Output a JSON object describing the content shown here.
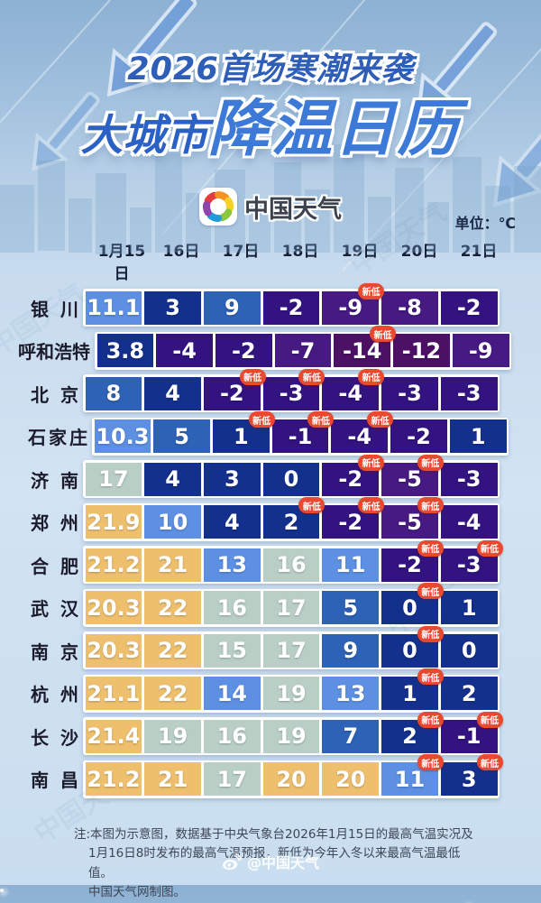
{
  "header": {
    "title_line1": "2026首场寒潮来袭",
    "title_line2_prefix": "大城市",
    "title_line2_main": "降温日历",
    "brand": "中国天气",
    "unit_label": "单位：℃"
  },
  "chart_data": {
    "type": "heatmap",
    "title": "大城市降温日历",
    "subtitle": "2026首场寒潮来袭",
    "unit": "℃",
    "new_low_badge_label": "新低",
    "badge_color": "#e8492f",
    "columns": [
      "1月15日",
      "16日",
      "17日",
      "18日",
      "19日",
      "20日",
      "21日"
    ],
    "rows": [
      {
        "city": "银川",
        "values": [
          "11.1",
          "3",
          "9",
          "-2",
          "-9",
          "-8",
          "-2"
        ],
        "new_low_cols": [
          4
        ]
      },
      {
        "city": "呼和浩特",
        "values": [
          "3.8",
          "-4",
          "-2",
          "-7",
          "-14",
          "-12",
          "-9"
        ],
        "new_low_cols": [
          4
        ]
      },
      {
        "city": "北京",
        "values": [
          "8",
          "4",
          "-2",
          "-3",
          "-4",
          "-3",
          "-3"
        ],
        "new_low_cols": [
          2,
          3,
          4
        ]
      },
      {
        "city": "石家庄",
        "values": [
          "10.3",
          "5",
          "1",
          "-1",
          "-4",
          "-2",
          "1"
        ],
        "new_low_cols": [
          2,
          3,
          4
        ]
      },
      {
        "city": "济南",
        "values": [
          "17",
          "4",
          "3",
          "0",
          "-2",
          "-5",
          "-3"
        ],
        "new_low_cols": [
          4,
          5
        ]
      },
      {
        "city": "郑州",
        "values": [
          "21.9",
          "10",
          "4",
          "2",
          "-2",
          "-5",
          "-4"
        ],
        "new_low_cols": [
          3,
          4,
          5
        ]
      },
      {
        "city": "合肥",
        "values": [
          "21.2",
          "21",
          "13",
          "16",
          "11",
          "-2",
          "-3"
        ],
        "new_low_cols": [
          5,
          6
        ]
      },
      {
        "city": "武汉",
        "values": [
          "20.3",
          "22",
          "16",
          "17",
          "5",
          "0",
          "1"
        ],
        "new_low_cols": [
          5
        ]
      },
      {
        "city": "南京",
        "values": [
          "20.3",
          "22",
          "15",
          "17",
          "9",
          "0",
          "0"
        ],
        "new_low_cols": [
          5
        ]
      },
      {
        "city": "杭州",
        "values": [
          "21.1",
          "22",
          "14",
          "19",
          "13",
          "1",
          "2"
        ],
        "new_low_cols": [
          5
        ]
      },
      {
        "city": "长沙",
        "values": [
          "21.4",
          "19",
          "16",
          "19",
          "7",
          "2",
          "-1"
        ],
        "new_low_cols": [
          5,
          6
        ]
      },
      {
        "city": "南昌",
        "values": [
          "21.2",
          "21",
          "17",
          "20",
          "20",
          "11",
          "3"
        ],
        "new_low_cols": [
          5,
          6
        ]
      }
    ],
    "color_scale": [
      {
        "min": 20,
        "color": "#eec06e"
      },
      {
        "min": 15,
        "color": "#b9cfc6"
      },
      {
        "min": 10,
        "color": "#5d90e2"
      },
      {
        "min": 5,
        "color": "#2e62b6"
      },
      {
        "min": 0,
        "color": "#14308d"
      },
      {
        "min": -4,
        "color": "#331380"
      },
      {
        "min": -9,
        "color": "#461a82"
      },
      {
        "min": -999,
        "color": "#4c1065"
      }
    ]
  },
  "note": {
    "lines": [
      "注:本图为示意图，数据基于中央气象台2026年1月15日的最高气温实况及",
      "1月16日8时发布的最高气温预报，新低为今年入冬以来最高气温最低值。",
      "中国天气网制图。"
    ]
  },
  "footer": {
    "watermark": "@中国天气"
  }
}
